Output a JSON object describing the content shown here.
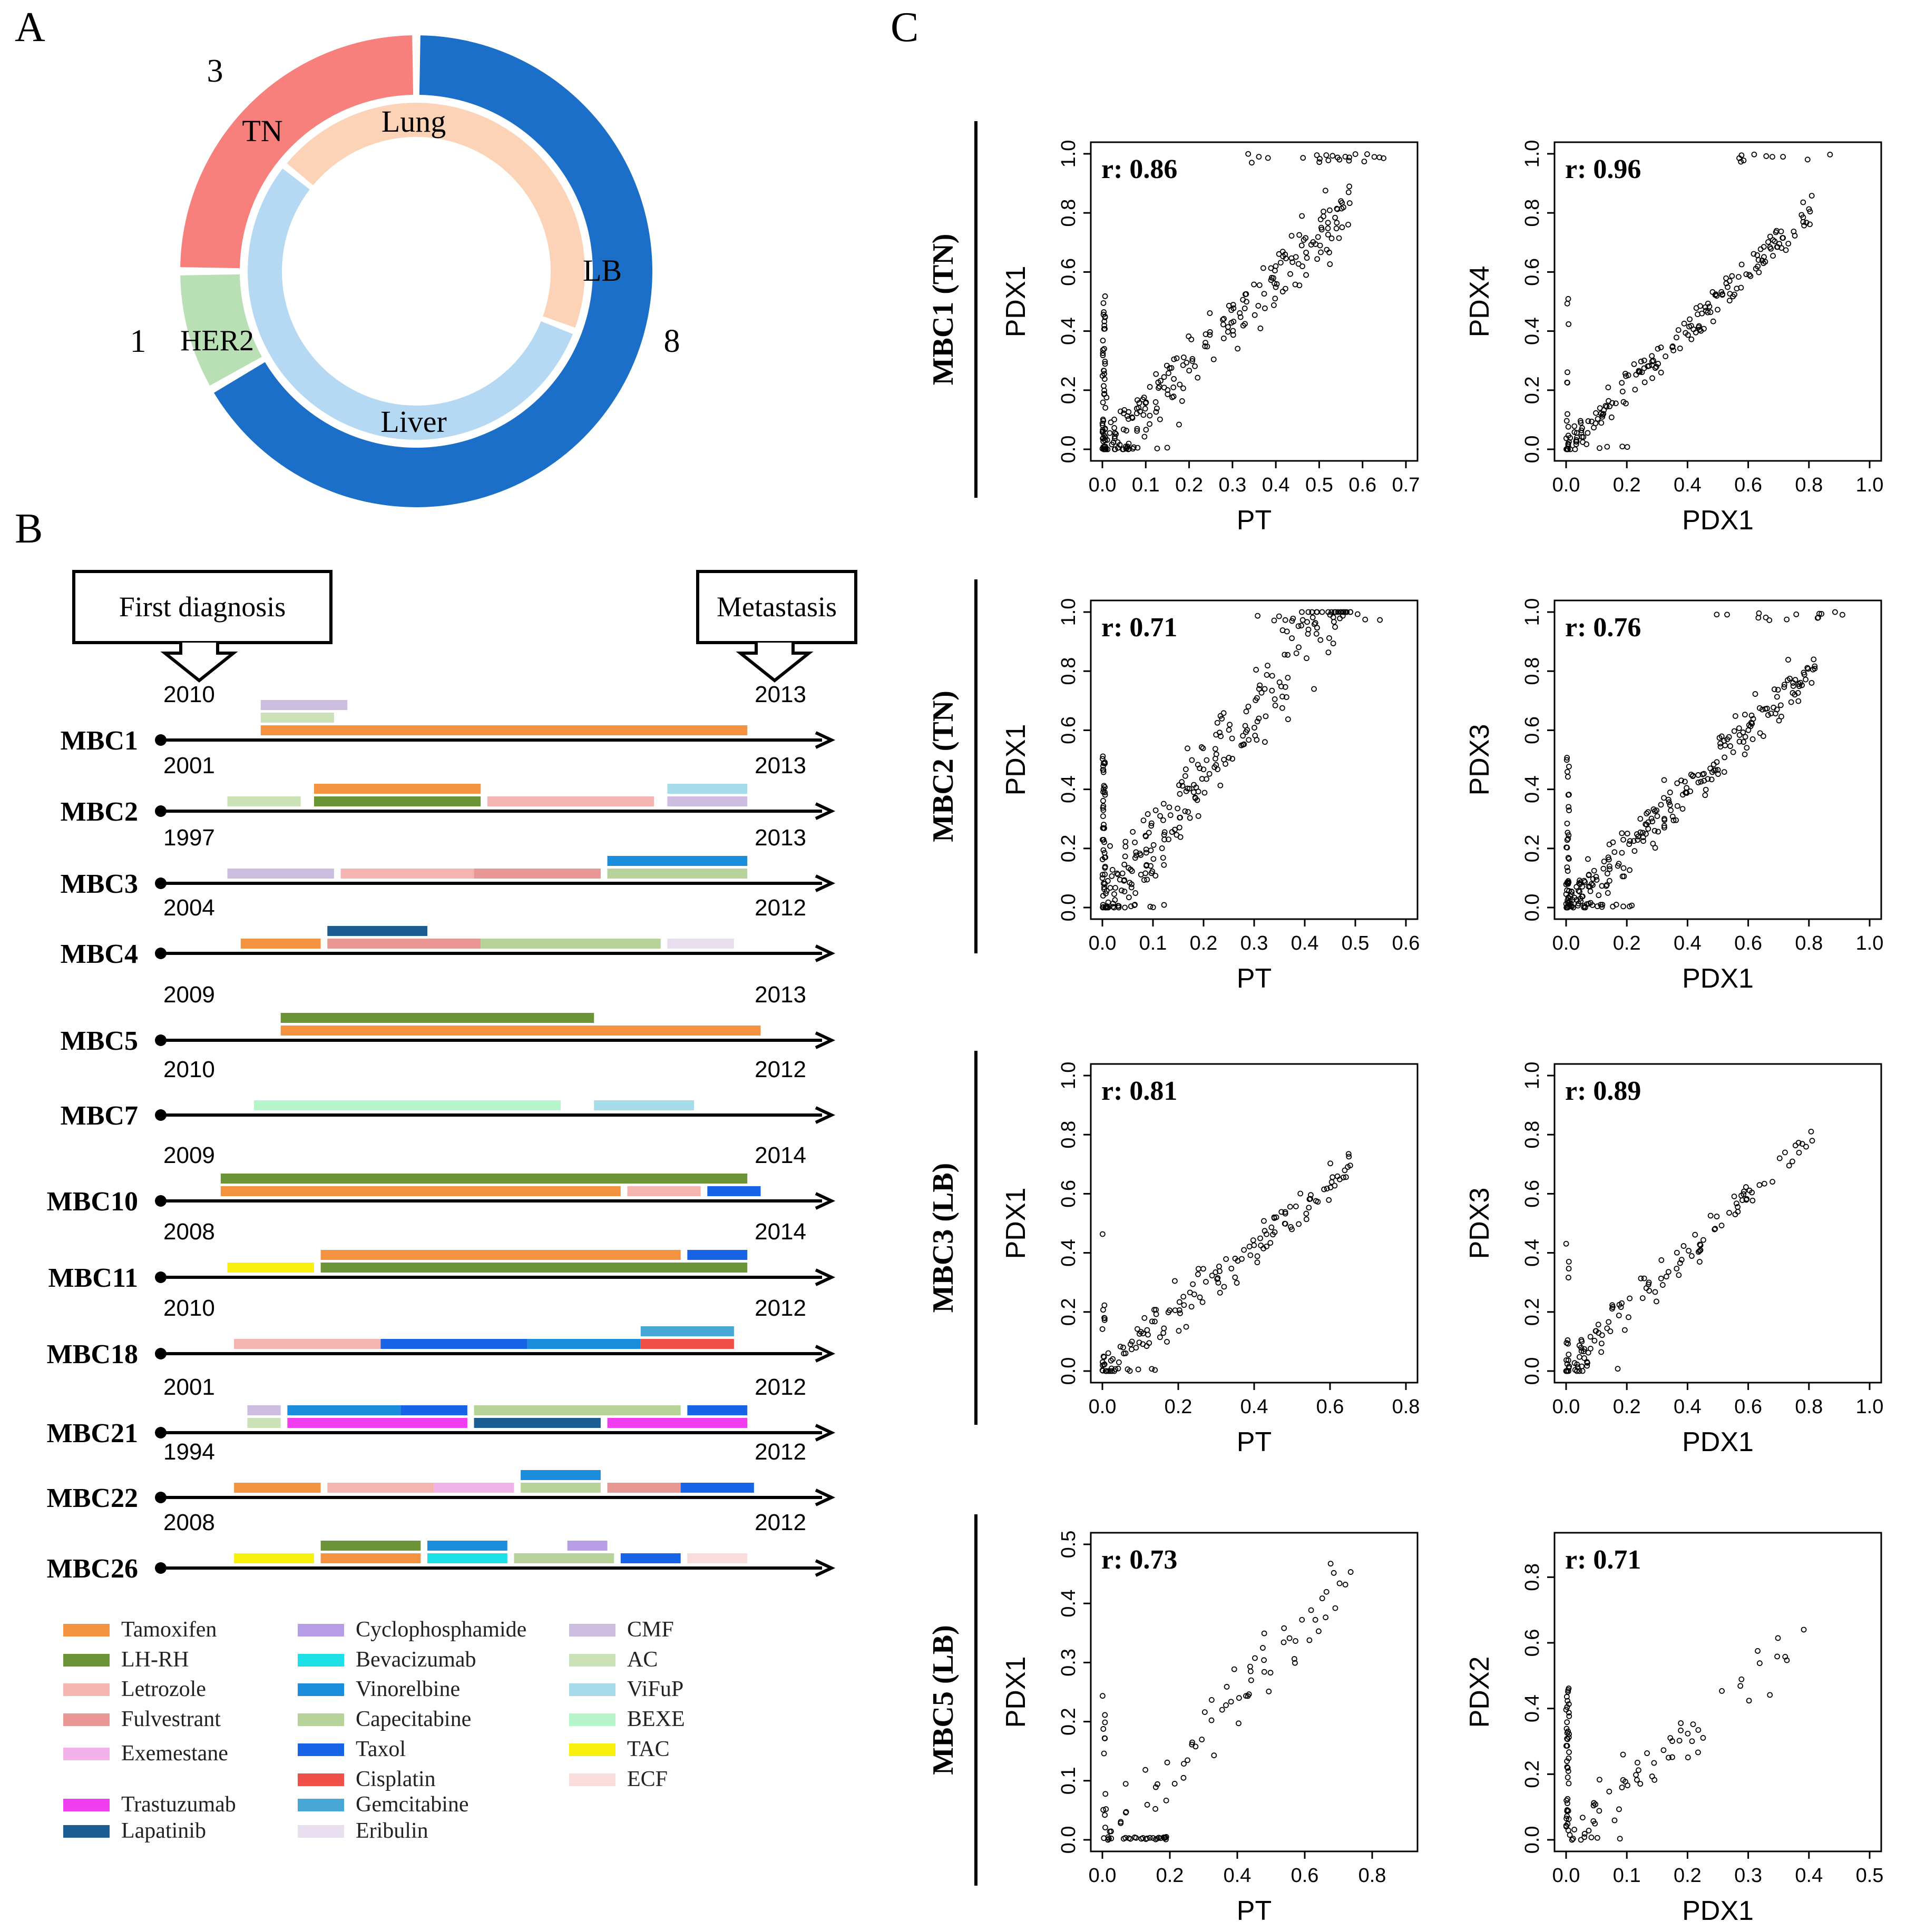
{
  "panels": {
    "a": "A",
    "b": "B",
    "c": "C"
  },
  "chart_data": [
    {
      "type": "donut",
      "panel": "A",
      "outer_ring": {
        "slices": [
          {
            "label": "LB",
            "count": 8,
            "color": "#1b6fc8"
          },
          {
            "label": "HER2",
            "count": 1,
            "color": "#b9e0b4"
          },
          {
            "label": "TN",
            "count": 3,
            "color": "#f7807c"
          }
        ]
      },
      "inner_ring": {
        "slices": [
          {
            "label": "Liver",
            "fraction": 0.55,
            "color": "#b6d9f3"
          },
          {
            "label": "Lung",
            "fraction": 0.45,
            "color": "#fdd3b7"
          }
        ]
      }
    },
    {
      "type": "timeline",
      "panel": "B",
      "callouts": {
        "first": "First diagnosis",
        "metastasis": "Metastasis"
      },
      "patients": [
        {
          "name": "MBC1",
          "start": "2010",
          "end": "2013",
          "bars": [
            {
              "drug": "CMF",
              "from": 0.15,
              "to": 0.28,
              "row": 2
            },
            {
              "drug": "AC",
              "from": 0.15,
              "to": 0.26,
              "row": 1
            },
            {
              "drug": "Tamoxifen",
              "from": 0.15,
              "to": 0.88,
              "row": 0
            }
          ]
        },
        {
          "name": "MBC2",
          "start": "2001",
          "end": "2013",
          "bars": [
            {
              "drug": "Tamoxifen",
              "from": 0.23,
              "to": 0.48,
              "row": 1
            },
            {
              "drug": "ViFuP",
              "from": 0.76,
              "to": 0.88,
              "row": 1
            },
            {
              "drug": "AC",
              "from": 0.1,
              "to": 0.21,
              "row": 0
            },
            {
              "drug": "LH-RH",
              "from": 0.23,
              "to": 0.48,
              "row": 0
            },
            {
              "drug": "Letrozole",
              "from": 0.49,
              "to": 0.74,
              "row": 0
            },
            {
              "drug": "CMF",
              "from": 0.76,
              "to": 0.88,
              "row": 0
            }
          ]
        },
        {
          "name": "MBC3",
          "start": "1997",
          "end": "2013",
          "bars": [
            {
              "drug": "Vinorelbine",
              "from": 0.67,
              "to": 0.88,
              "row": 1
            },
            {
              "drug": "CMF",
              "from": 0.1,
              "to": 0.26,
              "row": 0
            },
            {
              "drug": "Letrozole",
              "from": 0.27,
              "to": 0.47,
              "row": 0
            },
            {
              "drug": "Fulvestrant",
              "from": 0.47,
              "to": 0.66,
              "row": 0
            },
            {
              "drug": "Capecitabine",
              "from": 0.67,
              "to": 0.88,
              "row": 0
            }
          ]
        },
        {
          "name": "MBC4",
          "start": "2004",
          "end": "2012",
          "bars": [
            {
              "drug": "Lapatinib",
              "from": 0.25,
              "to": 0.4,
              "row": 1
            },
            {
              "drug": "Tamoxifen",
              "from": 0.12,
              "to": 0.24,
              "row": 0
            },
            {
              "drug": "Fulvestrant",
              "from": 0.25,
              "to": 0.48,
              "row": 0
            },
            {
              "drug": "Capecitabine",
              "from": 0.48,
              "to": 0.75,
              "row": 0
            },
            {
              "drug": "Eribulin",
              "from": 0.76,
              "to": 0.86,
              "row": 0
            }
          ]
        },
        {
          "name": "MBC5",
          "start": "2009",
          "end": "2013",
          "bars": [
            {
              "drug": "LH-RH",
              "from": 0.18,
              "to": 0.65,
              "row": 1
            },
            {
              "drug": "Tamoxifen",
              "from": 0.18,
              "to": 0.9,
              "row": 0
            }
          ]
        },
        {
          "name": "MBC7",
          "start": "2010",
          "end": "2012",
          "bars": [
            {
              "drug": "BEXE",
              "from": 0.14,
              "to": 0.6,
              "row": 0
            },
            {
              "drug": "ViFuP",
              "from": 0.65,
              "to": 0.8,
              "row": 0
            }
          ]
        },
        {
          "name": "MBC10",
          "start": "2009",
          "end": "2014",
          "bars": [
            {
              "drug": "LH-RH",
              "from": 0.09,
              "to": 0.88,
              "row": 1
            },
            {
              "drug": "Tamoxifen",
              "from": 0.09,
              "to": 0.69,
              "row": 0
            },
            {
              "drug": "Letrozole",
              "from": 0.7,
              "to": 0.81,
              "row": 0
            },
            {
              "drug": "Taxol",
              "from": 0.82,
              "to": 0.9,
              "row": 0
            }
          ]
        },
        {
          "name": "MBC11",
          "start": "2008",
          "end": "2014",
          "bars": [
            {
              "drug": "Tamoxifen",
              "from": 0.24,
              "to": 0.78,
              "row": 1
            },
            {
              "drug": "Taxol",
              "from": 0.79,
              "to": 0.88,
              "row": 1
            },
            {
              "drug": "TAC",
              "from": 0.1,
              "to": 0.23,
              "row": 0
            },
            {
              "drug": "LH-RH",
              "from": 0.24,
              "to": 0.88,
              "row": 0
            }
          ]
        },
        {
          "name": "MBC18",
          "start": "2010",
          "end": "2012",
          "bars": [
            {
              "drug": "Gemcitabine",
              "from": 0.72,
              "to": 0.86,
              "row": 1
            },
            {
              "drug": "Letrozole",
              "from": 0.11,
              "to": 0.33,
              "row": 0
            },
            {
              "drug": "Taxol",
              "from": 0.33,
              "to": 0.55,
              "row": 0
            },
            {
              "drug": "Vinorelbine",
              "from": 0.55,
              "to": 0.72,
              "row": 0
            },
            {
              "drug": "Cisplatin",
              "from": 0.72,
              "to": 0.86,
              "row": 0
            }
          ]
        },
        {
          "name": "MBC21",
          "start": "2001",
          "end": "2012",
          "bars": [
            {
              "drug": "CMF",
              "from": 0.13,
              "to": 0.18,
              "row": 1
            },
            {
              "drug": "Vinorelbine",
              "from": 0.19,
              "to": 0.36,
              "row": 1
            },
            {
              "drug": "Taxol",
              "from": 0.36,
              "to": 0.46,
              "row": 1
            },
            {
              "drug": "Capecitabine",
              "from": 0.47,
              "to": 0.78,
              "row": 1
            },
            {
              "drug": "Taxol",
              "from": 0.79,
              "to": 0.88,
              "row": 1
            },
            {
              "drug": "AC",
              "from": 0.13,
              "to": 0.18,
              "row": 0
            },
            {
              "drug": "Trastuzumab",
              "from": 0.19,
              "to": 0.46,
              "row": 0
            },
            {
              "drug": "Lapatinib",
              "from": 0.47,
              "to": 0.66,
              "row": 0
            },
            {
              "drug": "Trastuzumab",
              "from": 0.67,
              "to": 0.88,
              "row": 0
            }
          ]
        },
        {
          "name": "MBC22",
          "start": "1994",
          "end": "2012",
          "bars": [
            {
              "drug": "Vinorelbine",
              "from": 0.54,
              "to": 0.66,
              "row": 1
            },
            {
              "drug": "Tamoxifen",
              "from": 0.11,
              "to": 0.24,
              "row": 0
            },
            {
              "drug": "Letrozole",
              "from": 0.25,
              "to": 0.41,
              "row": 0
            },
            {
              "drug": "Exemestane",
              "from": 0.41,
              "to": 0.53,
              "row": 0
            },
            {
              "drug": "Capecitabine",
              "from": 0.54,
              "to": 0.66,
              "row": 0
            },
            {
              "drug": "Fulvestrant",
              "from": 0.67,
              "to": 0.78,
              "row": 0
            },
            {
              "drug": "Taxol",
              "from": 0.78,
              "to": 0.89,
              "row": 0
            }
          ]
        },
        {
          "name": "MBC26",
          "start": "2008",
          "end": "2012",
          "bars": [
            {
              "drug": "LH-RH",
              "from": 0.24,
              "to": 0.39,
              "row": 1
            },
            {
              "drug": "Vinorelbine",
              "from": 0.4,
              "to": 0.52,
              "row": 1
            },
            {
              "drug": "Cyclophosphamide",
              "from": 0.61,
              "to": 0.67,
              "row": 1
            },
            {
              "drug": "TAC",
              "from": 0.11,
              "to": 0.23,
              "row": 0
            },
            {
              "drug": "Tamoxifen",
              "from": 0.24,
              "to": 0.39,
              "row": 0
            },
            {
              "drug": "Bevacizumab",
              "from": 0.4,
              "to": 0.52,
              "row": 0
            },
            {
              "drug": "Capecitabine",
              "from": 0.53,
              "to": 0.68,
              "row": 0
            },
            {
              "drug": "Taxol",
              "from": 0.69,
              "to": 0.78,
              "row": 0
            },
            {
              "drug": "ECF",
              "from": 0.79,
              "to": 0.88,
              "row": 0
            }
          ]
        }
      ],
      "legend": [
        {
          "label": "Tamoxifen",
          "color": "#f39340"
        },
        {
          "label": "LH-RH",
          "color": "#6b9436"
        },
        {
          "label": "Letrozole",
          "color": "#f4b4b0"
        },
        {
          "label": "Fulvestrant",
          "color": "#e99792"
        },
        {
          "label": "Exemestane",
          "color": "#f2b2ea"
        },
        {
          "label": "Trastuzumab",
          "color": "#f03df0"
        },
        {
          "label": "Lapatinib",
          "color": "#1a5d93"
        },
        {
          "label": "Cyclophosphamide",
          "color": "#b79ce6"
        },
        {
          "label": "Bevacizumab",
          "color": "#1ddfe6"
        },
        {
          "label": "Vinorelbine",
          "color": "#1a8edd"
        },
        {
          "label": "Capecitabine",
          "color": "#b8d39a"
        },
        {
          "label": "Taxol",
          "color": "#1764e7"
        },
        {
          "label": "Cisplatin",
          "color": "#ef5148"
        },
        {
          "label": "Gemcitabine",
          "color": "#48a6d6"
        },
        {
          "label": "Eribulin",
          "color": "#e7dff0"
        },
        {
          "label": "CMF",
          "color": "#cdbde0"
        },
        {
          "label": "AC",
          "color": "#cbe2b8"
        },
        {
          "label": "ViFuP",
          "color": "#a6dcea"
        },
        {
          "label": "BEXE",
          "color": "#b5f5c9"
        },
        {
          "label": "TAC",
          "color": "#f8f10d"
        },
        {
          "label": "ECF",
          "color": "#fbdcdc"
        }
      ]
    },
    {
      "type": "scatter",
      "panel": "C",
      "rows": [
        {
          "label": "MBC1 (TN)",
          "plots": [
            {
              "x_label": "PT",
              "y_label": "PDX1",
              "r": "r: 0.86",
              "xlim": [
                0,
                0.7
              ],
              "ylim": [
                0,
                1.0
              ],
              "xticks": [
                "0.0",
                "0.1",
                "0.2",
                "0.3",
                "0.4",
                "0.5",
                "0.6",
                "0.7"
              ],
              "yticks": [
                "0.0",
                "0.2",
                "0.4",
                "0.6",
                "0.8",
                "1.0"
              ],
              "seed": 11,
              "n": 210,
              "slope": 1.45,
              "noise": 0.12,
              "zero_x": 40,
              "zero_y": 14,
              "top_cluster": 22
            },
            {
              "x_label": "PDX1",
              "y_label": "PDX4",
              "r": "r: 0.96",
              "xlim": [
                0,
                1.0
              ],
              "ylim": [
                0,
                1.0
              ],
              "xticks": [
                "0.0",
                "0.2",
                "0.4",
                "0.6",
                "0.8",
                "1.0"
              ],
              "yticks": [
                "0.0",
                "0.2",
                "0.4",
                "0.6",
                "0.8",
                "1.0"
              ],
              "seed": 12,
              "n": 180,
              "slope": 1.0,
              "noise": 0.06,
              "zero_x": 10,
              "zero_y": 4,
              "top_cluster": 10
            }
          ]
        },
        {
          "label": "MBC2 (TN)",
          "plots": [
            {
              "x_label": "PT",
              "y_label": "PDX1",
              "r": "r: 0.71",
              "xlim": [
                0,
                0.6
              ],
              "ylim": [
                0,
                1.0
              ],
              "xticks": [
                "0.0",
                "0.1",
                "0.2",
                "0.3",
                "0.4",
                "0.5",
                "0.6"
              ],
              "yticks": [
                "0.0",
                "0.2",
                "0.4",
                "0.6",
                "0.8",
                "1.0"
              ],
              "seed": 21,
              "n": 230,
              "slope": 2.2,
              "noise": 0.14,
              "zero_x": 45,
              "zero_y": 10,
              "top_cluster": 12
            },
            {
              "x_label": "PDX1",
              "y_label": "PDX3",
              "r": "r: 0.76",
              "xlim": [
                0,
                1.0
              ],
              "ylim": [
                0,
                1.0
              ],
              "xticks": [
                "0.0",
                "0.2",
                "0.4",
                "0.6",
                "0.8",
                "1.0"
              ],
              "yticks": [
                "0.0",
                "0.2",
                "0.4",
                "0.6",
                "0.8",
                "1.0"
              ],
              "seed": 22,
              "n": 230,
              "slope": 1.0,
              "noise": 0.08,
              "zero_x": 30,
              "zero_y": 18,
              "top_cluster": 14
            }
          ]
        },
        {
          "label": "MBC3 (LB)",
          "plots": [
            {
              "x_label": "PT",
              "y_label": "PDX1",
              "r": "r: 0.81",
              "xlim": [
                0,
                0.8
              ],
              "ylim": [
                0,
                1.0
              ],
              "xticks": [
                "0.0",
                "0.2",
                "0.4",
                "0.6",
                "0.8"
              ],
              "yticks": [
                "0.0",
                "0.2",
                "0.4",
                "0.6",
                "0.8",
                "1.0"
              ],
              "seed": 31,
              "n": 140,
              "slope": 1.05,
              "noise": 0.07,
              "zero_x": 10,
              "zero_y": 6,
              "top_cluster": 0
            },
            {
              "x_label": "PDX1",
              "y_label": "PDX3",
              "r": "r: 0.89",
              "xlim": [
                0,
                1.0
              ],
              "ylim": [
                0,
                1.0
              ],
              "xticks": [
                "0.0",
                "0.2",
                "0.4",
                "0.6",
                "0.8",
                "1.0"
              ],
              "yticks": [
                "0.0",
                "0.2",
                "0.4",
                "0.6",
                "0.8",
                "1.0"
              ],
              "seed": 32,
              "n": 120,
              "slope": 1.0,
              "noise": 0.06,
              "zero_x": 8,
              "zero_y": 2,
              "top_cluster": 0
            }
          ]
        },
        {
          "label": "MBC5 (LB)",
          "plots": [
            {
              "x_label": "PT",
              "y_label": "PDX1",
              "r": "r: 0.73",
              "xlim": [
                0,
                0.9
              ],
              "ylim": [
                0,
                0.5
              ],
              "xticks": [
                "0.0",
                "0.2",
                "0.4",
                "0.6",
                "0.8"
              ],
              "yticks": [
                "0.0",
                "0.1",
                "0.2",
                "0.3",
                "0.4",
                "0.5"
              ],
              "seed": 41,
              "n": 70,
              "slope": 0.6,
              "noise": 0.06,
              "zero_x": 10,
              "zero_y": 24,
              "top_cluster": 0
            },
            {
              "x_label": "PDX1",
              "y_label": "PDX2",
              "r": "r: 0.71",
              "xlim": [
                0,
                0.5
              ],
              "ylim": [
                0,
                0.9
              ],
              "xticks": [
                "0.0",
                "0.1",
                "0.2",
                "0.3",
                "0.4",
                "0.5"
              ],
              "yticks": [
                "0.0",
                "0.2",
                "0.4",
                "0.6",
                "0.8"
              ],
              "seed": 42,
              "n": 60,
              "slope": 1.6,
              "noise": 0.08,
              "zero_x": 40,
              "zero_y": 4,
              "top_cluster": 0
            }
          ]
        }
      ]
    }
  ]
}
